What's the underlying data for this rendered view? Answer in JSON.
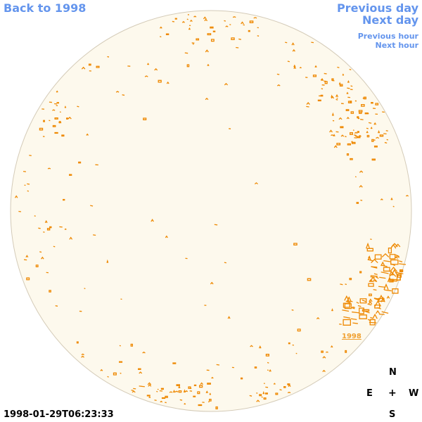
{
  "nav": {
    "back_label": "Back to 1998",
    "prev_day_label": "Previous day",
    "next_day_label": "Next day",
    "prev_hour_label": "Previous hour",
    "next_hour_label": "Next hour"
  },
  "map": {
    "disk_fill": "#fdf9ed",
    "disk_stroke": "#d4cbb8",
    "contour_color": "#ee8800",
    "region_label": "1998"
  },
  "compass": {
    "n": "N",
    "e": "E",
    "center": "+",
    "w": "W",
    "s": "S"
  },
  "timestamp": "1998-01-29T06:23:33"
}
